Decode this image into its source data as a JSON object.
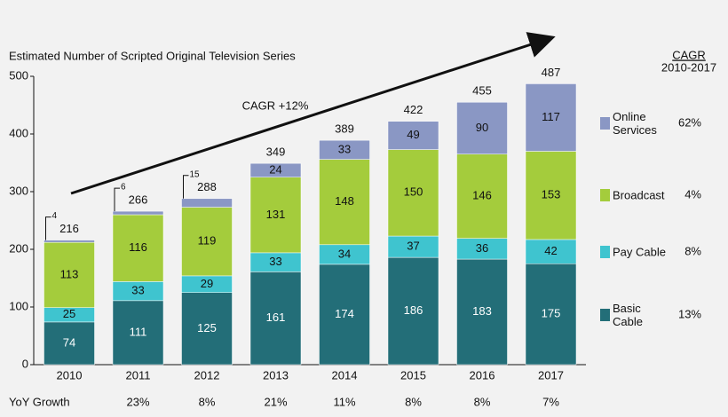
{
  "chart_data": {
    "type": "stacked-bar",
    "y_axis_title": "Estimated Number of Scripted Original Television Series",
    "categories": [
      "2010",
      "2011",
      "2012",
      "2013",
      "2014",
      "2015",
      "2016",
      "2017"
    ],
    "ylim": [
      0,
      500
    ],
    "yticks": [
      0,
      100,
      200,
      300,
      400,
      500
    ],
    "series": [
      {
        "name": "Basic Cable",
        "color": "#236e78",
        "values": [
          74,
          111,
          125,
          161,
          174,
          186,
          183,
          175
        ],
        "cagr": 13,
        "cagr_label": "13%"
      },
      {
        "name": "Pay Cable",
        "color": "#3fc4cf",
        "values": [
          25,
          33,
          29,
          33,
          34,
          37,
          36,
          42
        ],
        "cagr": 8,
        "cagr_label": "8%"
      },
      {
        "name": "Broadcast",
        "color": "#a4cc3c",
        "values": [
          113,
          116,
          119,
          131,
          148,
          150,
          146,
          153
        ],
        "cagr": 4,
        "cagr_label": "4%"
      },
      {
        "name": "Online Services",
        "color": "#8a97c4",
        "values": [
          4,
          6,
          15,
          24,
          33,
          49,
          90,
          117
        ],
        "cagr": 62,
        "cagr_label": "62%"
      }
    ],
    "totals": [
      216,
      266,
      288,
      349,
      389,
      422,
      455,
      487
    ],
    "cagr_title": "CAGR",
    "cagr_period": "2010-2017",
    "annotation": "CAGR +12%",
    "yoy": {
      "label": "YoY Growth",
      "values": [
        null,
        23,
        8,
        21,
        11,
        8,
        8,
        7
      ],
      "value_labels": [
        null,
        "23%",
        "8%",
        "21%",
        "11%",
        "8%",
        "8%",
        "7%"
      ]
    }
  }
}
